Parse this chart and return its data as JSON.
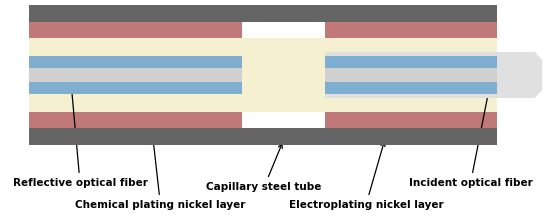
{
  "fig_width": 5.5,
  "fig_height": 2.22,
  "dpi": 100,
  "bg_color": "#ffffff",
  "colors": {
    "nickel_dark": "#646464",
    "rose": "#c07878",
    "cream": "#f5f0d0",
    "blue": "#80aed0",
    "light_gray": "#d0d0d0",
    "white": "#ffffff",
    "incident_fiber_light": "#e0e0e0",
    "incident_fiber_dark": "#c8c8c8"
  },
  "labels": {
    "reflective": "Reflective optical fiber",
    "chemical": "Chemical plating nickel layer",
    "capillary": "Capillary steel tube",
    "electroplating": "Electroplating nickel layer",
    "incident": "Incident optical fiber"
  },
  "label_fontsize": 7.5
}
